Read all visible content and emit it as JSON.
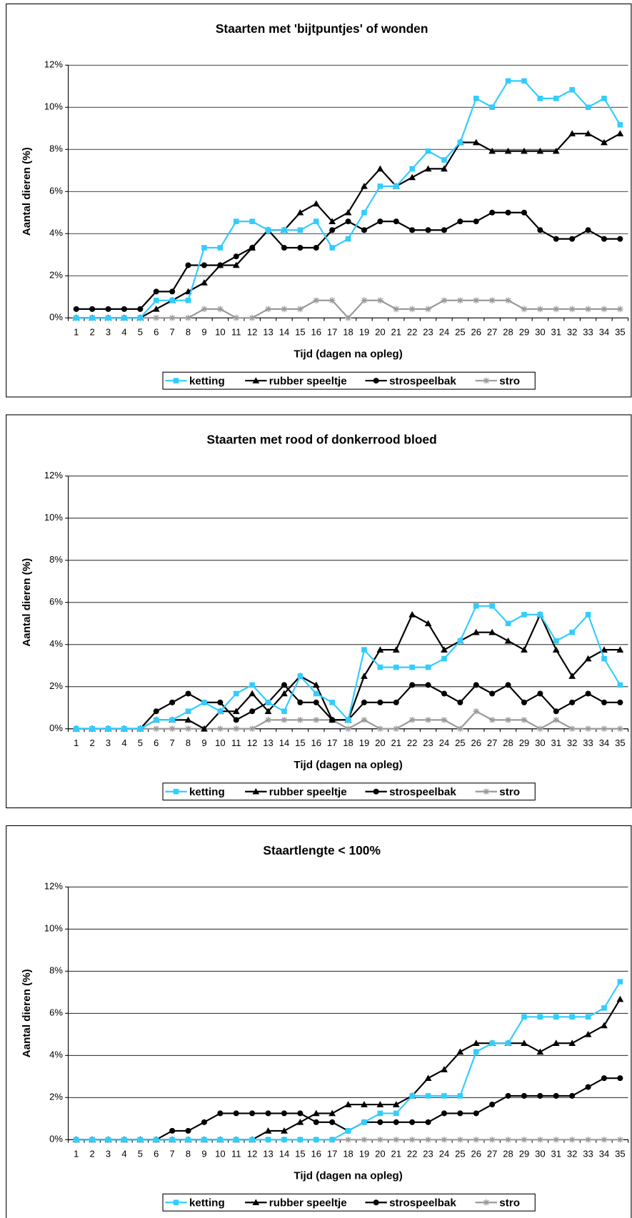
{
  "chart_data": [
    {
      "type": "line",
      "title": "Staarten met 'bijtpuntjes' of wonden",
      "x_label": "Tijd (dagen na opleg)",
      "y_label": "Aantal dieren (%)",
      "categories": [
        "1",
        "2",
        "3",
        "4",
        "5",
        "6",
        "7",
        "8",
        "9",
        "10",
        "11",
        "12",
        "13",
        "14",
        "15",
        "16",
        "17",
        "18",
        "19",
        "20",
        "21",
        "22",
        "23",
        "24",
        "25",
        "26",
        "27",
        "28",
        "29",
        "30",
        "31",
        "32",
        "33",
        "34",
        "35"
      ],
      "ylim": [
        0,
        12
      ],
      "yticks": [
        {
          "value": 0,
          "label": "0%"
        },
        {
          "value": 2,
          "label": "2%"
        },
        {
          "value": 4,
          "label": "4%"
        },
        {
          "value": 6,
          "label": "6%"
        },
        {
          "value": 8,
          "label": "8%"
        },
        {
          "value": 10,
          "label": "10%"
        },
        {
          "value": 12,
          "label": "12%"
        }
      ],
      "grid": true,
      "legend": "bottom",
      "series": [
        {
          "name": "ketting",
          "color": "#33ccff",
          "marker": "square",
          "values": [
            0,
            0,
            0,
            0,
            0,
            0.83,
            0.83,
            0.83,
            3.33,
            3.33,
            4.58,
            4.58,
            4.17,
            4.17,
            4.17,
            4.58,
            3.33,
            3.75,
            5.0,
            6.25,
            6.25,
            7.08,
            7.92,
            7.5,
            8.33,
            10.42,
            10.0,
            11.25,
            11.25,
            10.42,
            10.42,
            10.83,
            10.0,
            10.42,
            9.17
          ]
        },
        {
          "name": "rubber speeltje",
          "color": "#000000",
          "marker": "triangle",
          "values": [
            0,
            0,
            0,
            0,
            0,
            0.42,
            0.83,
            1.25,
            1.67,
            2.5,
            2.5,
            3.33,
            4.17,
            4.17,
            5.0,
            5.42,
            4.58,
            5.0,
            6.25,
            7.08,
            6.25,
            6.67,
            7.08,
            7.08,
            8.33,
            8.33,
            7.92,
            7.92,
            7.92,
            7.92,
            7.92,
            8.75,
            8.75,
            8.33,
            8.75
          ]
        },
        {
          "name": "strospeelbak",
          "color": "#000000",
          "marker": "circle",
          "values": [
            0.42,
            0.42,
            0.42,
            0.42,
            0.42,
            1.25,
            1.25,
            2.5,
            2.5,
            2.5,
            2.92,
            3.33,
            4.17,
            3.33,
            3.33,
            3.33,
            4.17,
            4.58,
            4.17,
            4.58,
            4.58,
            4.17,
            4.17,
            4.17,
            4.58,
            4.58,
            5.0,
            5.0,
            5.0,
            4.17,
            3.75,
            3.75,
            4.17,
            3.75,
            3.75
          ]
        },
        {
          "name": "stro",
          "color": "#999999",
          "marker": "star",
          "values": [
            0,
            0,
            0,
            0,
            0,
            0,
            0,
            0,
            0.42,
            0.42,
            0,
            0,
            0.42,
            0.42,
            0.42,
            0.83,
            0.83,
            0,
            0.83,
            0.83,
            0.42,
            0.42,
            0.42,
            0.83,
            0.83,
            0.83,
            0.83,
            0.83,
            0.42,
            0.42,
            0.42,
            0.42,
            0.42,
            0.42,
            0.42
          ]
        }
      ]
    },
    {
      "type": "line",
      "title": "Staarten met rood of donkerrood bloed",
      "x_label": "Tijd (dagen na opleg)",
      "y_label": "Aantal dieren (%)",
      "categories": [
        "1",
        "2",
        "3",
        "4",
        "5",
        "6",
        "7",
        "8",
        "9",
        "10",
        "11",
        "12",
        "13",
        "14",
        "15",
        "16",
        "17",
        "18",
        "19",
        "20",
        "21",
        "22",
        "23",
        "24",
        "25",
        "26",
        "27",
        "28",
        "29",
        "30",
        "31",
        "32",
        "33",
        "34",
        "35"
      ],
      "ylim": [
        0,
        12
      ],
      "yticks": [
        {
          "value": 0,
          "label": "0%"
        },
        {
          "value": 2,
          "label": "2%"
        },
        {
          "value": 4,
          "label": "4%"
        },
        {
          "value": 6,
          "label": "6%"
        },
        {
          "value": 8,
          "label": "8%"
        },
        {
          "value": 10,
          "label": "10%"
        },
        {
          "value": 12,
          "label": "12%"
        }
      ],
      "grid": true,
      "legend": "bottom",
      "series": [
        {
          "name": "ketting",
          "color": "#33ccff",
          "marker": "square",
          "values": [
            0,
            0,
            0,
            0,
            0,
            0.42,
            0.42,
            0.83,
            1.25,
            0.83,
            1.67,
            2.08,
            1.25,
            0.83,
            2.5,
            1.67,
            1.25,
            0.42,
            3.75,
            2.92,
            2.92,
            2.92,
            2.92,
            3.33,
            4.17,
            5.83,
            5.83,
            5.0,
            5.42,
            5.42,
            4.17,
            4.58,
            5.42,
            3.33,
            2.08
          ]
        },
        {
          "name": "rubber speeltje",
          "color": "#000000",
          "marker": "triangle",
          "values": [
            0,
            0,
            0,
            0,
            0,
            0.42,
            0.42,
            0.42,
            0,
            0.83,
            0.83,
            1.67,
            0.83,
            1.67,
            2.5,
            2.08,
            0.42,
            0.42,
            2.5,
            3.75,
            3.75,
            5.42,
            5.0,
            3.75,
            4.17,
            4.58,
            4.58,
            4.17,
            3.75,
            5.42,
            3.75,
            2.5,
            3.33,
            3.75,
            3.75
          ]
        },
        {
          "name": "strospeelbak",
          "color": "#000000",
          "marker": "circle",
          "values": [
            0,
            0,
            0,
            0,
            0,
            0.83,
            1.25,
            1.67,
            1.25,
            1.25,
            0.42,
            0.83,
            1.25,
            2.08,
            1.25,
            1.25,
            0.42,
            0.42,
            1.25,
            1.25,
            1.25,
            2.08,
            2.08,
            1.67,
            1.25,
            2.08,
            1.67,
            2.08,
            1.25,
            1.67,
            0.83,
            1.25,
            1.67,
            1.25,
            1.25
          ]
        },
        {
          "name": "stro",
          "color": "#999999",
          "marker": "star",
          "values": [
            0,
            0,
            0,
            0,
            0,
            0,
            0,
            0,
            0,
            0,
            0,
            0,
            0.42,
            0.42,
            0.42,
            0.42,
            0.42,
            0,
            0.42,
            0,
            0,
            0.42,
            0.42,
            0.42,
            0,
            0.83,
            0.42,
            0.42,
            0.42,
            0,
            0.42,
            0,
            0,
            0,
            0
          ]
        }
      ]
    },
    {
      "type": "line",
      "title": "Staartlengte < 100%",
      "x_label": "Tijd (dagen na opleg)",
      "y_label": "Aantal dieren (%)",
      "categories": [
        "1",
        "2",
        "3",
        "4",
        "5",
        "6",
        "7",
        "8",
        "9",
        "10",
        "11",
        "12",
        "13",
        "14",
        "15",
        "16",
        "17",
        "18",
        "19",
        "20",
        "21",
        "22",
        "23",
        "24",
        "25",
        "26",
        "27",
        "28",
        "29",
        "30",
        "31",
        "32",
        "33",
        "34",
        "35"
      ],
      "ylim": [
        0,
        12
      ],
      "yticks": [
        {
          "value": 0,
          "label": "0%"
        },
        {
          "value": 2,
          "label": "2%"
        },
        {
          "value": 4,
          "label": "4%"
        },
        {
          "value": 6,
          "label": "6%"
        },
        {
          "value": 8,
          "label": "8%"
        },
        {
          "value": 10,
          "label": "10%"
        },
        {
          "value": 12,
          "label": "12%"
        }
      ],
      "grid": true,
      "legend": "bottom",
      "series": [
        {
          "name": "ketting",
          "color": "#33ccff",
          "marker": "square",
          "values": [
            0,
            0,
            0,
            0,
            0,
            0,
            0,
            0,
            0,
            0,
            0,
            0,
            0,
            0,
            0,
            0,
            0,
            0.42,
            0.83,
            1.25,
            1.25,
            2.08,
            2.08,
            2.08,
            2.08,
            4.17,
            4.58,
            4.58,
            5.83,
            5.83,
            5.83,
            5.83,
            5.83,
            6.25,
            7.5
          ]
        },
        {
          "name": "rubber speeltje",
          "color": "#000000",
          "marker": "triangle",
          "values": [
            0,
            0,
            0,
            0,
            0,
            0,
            0,
            0,
            0,
            0,
            0,
            0,
            0.42,
            0.42,
            0.83,
            1.25,
            1.25,
            1.67,
            1.67,
            1.67,
            1.67,
            2.08,
            2.92,
            3.33,
            4.17,
            4.58,
            4.58,
            4.58,
            4.58,
            4.17,
            4.58,
            4.58,
            5.0,
            5.42,
            6.67
          ]
        },
        {
          "name": "strospeelbak",
          "color": "#000000",
          "marker": "circle",
          "values": [
            0,
            0,
            0,
            0,
            0,
            0,
            0.42,
            0.42,
            0.83,
            1.25,
            1.25,
            1.25,
            1.25,
            1.25,
            1.25,
            0.83,
            0.83,
            0.42,
            0.83,
            0.83,
            0.83,
            0.83,
            0.83,
            1.25,
            1.25,
            1.25,
            1.67,
            2.08,
            2.08,
            2.08,
            2.08,
            2.08,
            2.5,
            2.92,
            2.92
          ]
        },
        {
          "name": "stro",
          "color": "#999999",
          "marker": "star",
          "values": [
            0,
            0,
            0,
            0,
            0,
            0,
            0,
            0,
            0,
            0,
            0,
            0,
            0,
            0,
            0,
            0,
            0,
            0,
            0,
            0,
            0,
            0,
            0,
            0,
            0,
            0,
            0,
            0,
            0,
            0,
            0,
            0,
            0,
            0,
            0
          ]
        }
      ]
    }
  ]
}
